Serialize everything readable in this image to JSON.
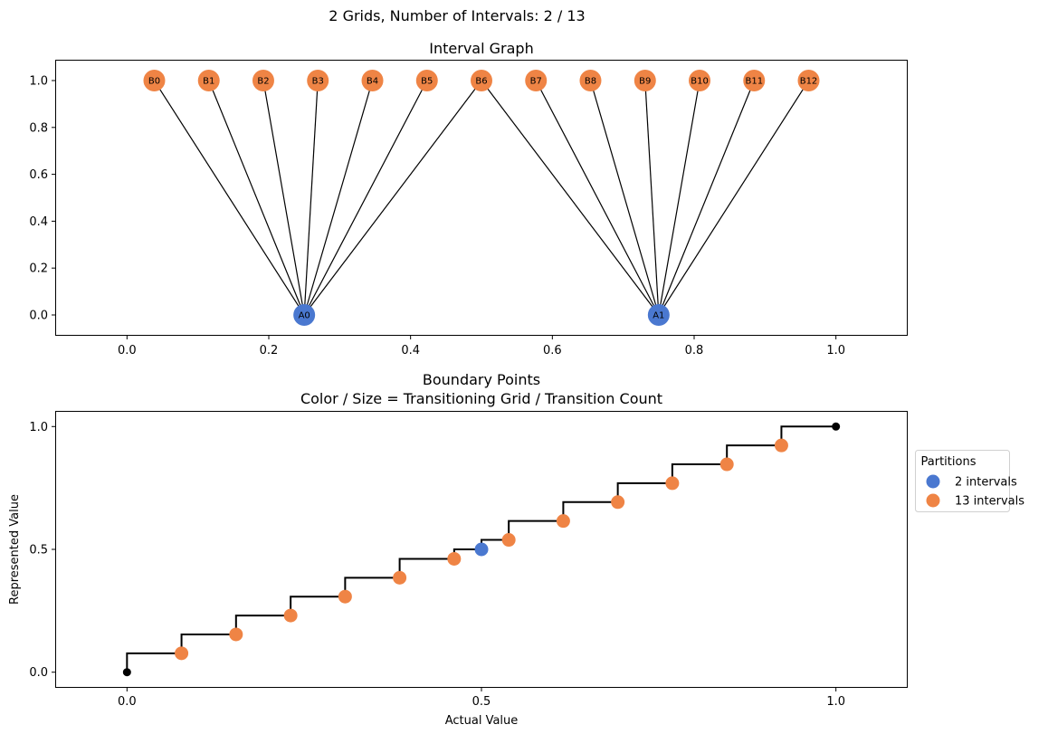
{
  "suptitle": "2 Grids, Number of Intervals: 2 / 13",
  "colors": {
    "blue": "#4a78d0",
    "orange": "#ef8445",
    "black": "#000000"
  },
  "chart_data": [
    {
      "type": "graph",
      "title": "Interval Graph",
      "xlabel": "",
      "ylabel": "",
      "xlim": [
        -0.1,
        1.1
      ],
      "ylim": [
        -0.085,
        1.085
      ],
      "xticks": [
        "0.0",
        "0.2",
        "0.4",
        "0.6",
        "0.8",
        "1.0"
      ],
      "yticks": [
        "0.0",
        "0.2",
        "0.4",
        "0.6",
        "0.8",
        "1.0"
      ],
      "grid": false,
      "nodes": [
        {
          "id": "A0",
          "x": 0.25,
          "y": 0,
          "group": "blue"
        },
        {
          "id": "A1",
          "x": 0.75,
          "y": 0,
          "group": "blue"
        },
        {
          "id": "B0",
          "x": 0.0385,
          "y": 1,
          "group": "orange"
        },
        {
          "id": "B1",
          "x": 0.1154,
          "y": 1,
          "group": "orange"
        },
        {
          "id": "B2",
          "x": 0.1923,
          "y": 1,
          "group": "orange"
        },
        {
          "id": "B3",
          "x": 0.2692,
          "y": 1,
          "group": "orange"
        },
        {
          "id": "B4",
          "x": 0.3462,
          "y": 1,
          "group": "orange"
        },
        {
          "id": "B5",
          "x": 0.4231,
          "y": 1,
          "group": "orange"
        },
        {
          "id": "B6",
          "x": 0.5,
          "y": 1,
          "group": "orange"
        },
        {
          "id": "B7",
          "x": 0.5769,
          "y": 1,
          "group": "orange"
        },
        {
          "id": "B8",
          "x": 0.6538,
          "y": 1,
          "group": "orange"
        },
        {
          "id": "B9",
          "x": 0.7308,
          "y": 1,
          "group": "orange"
        },
        {
          "id": "B10",
          "x": 0.8077,
          "y": 1,
          "group": "orange"
        },
        {
          "id": "B11",
          "x": 0.8846,
          "y": 1,
          "group": "orange"
        },
        {
          "id": "B12",
          "x": 0.9615,
          "y": 1,
          "group": "orange"
        }
      ],
      "edges": [
        [
          "A0",
          "B0"
        ],
        [
          "A0",
          "B1"
        ],
        [
          "A0",
          "B2"
        ],
        [
          "A0",
          "B3"
        ],
        [
          "A0",
          "B4"
        ],
        [
          "A0",
          "B5"
        ],
        [
          "A0",
          "B6"
        ],
        [
          "A1",
          "B6"
        ],
        [
          "A1",
          "B7"
        ],
        [
          "A1",
          "B8"
        ],
        [
          "A1",
          "B9"
        ],
        [
          "A1",
          "B10"
        ],
        [
          "A1",
          "B11"
        ],
        [
          "A1",
          "B12"
        ]
      ]
    },
    {
      "type": "step-scatter",
      "title": "Boundary Points",
      "subtitle": "Color / Size = Transitioning Grid / Transition Count",
      "xlabel": "Actual Value",
      "ylabel": "Represented Value",
      "xlim": [
        -0.1,
        1.1
      ],
      "ylim": [
        -0.06,
        1.06
      ],
      "xticks": [
        "0.0",
        "0.5",
        "1.0"
      ],
      "yticks": [
        "0.0",
        "0.5",
        "1.0"
      ],
      "grid": false,
      "step": {
        "x": [
          0,
          0.0769,
          0.1538,
          0.2308,
          0.3077,
          0.3846,
          0.4615,
          0.5,
          0.5385,
          0.6154,
          0.6923,
          0.7692,
          0.8462,
          0.9231,
          1.0
        ],
        "y": [
          0,
          0.0769,
          0.1538,
          0.2308,
          0.3077,
          0.3846,
          0.4615,
          0.5,
          0.5385,
          0.6154,
          0.6923,
          0.7692,
          0.8462,
          0.9231,
          1.0
        ]
      },
      "endpoints": [
        {
          "x": 0,
          "y": 0
        },
        {
          "x": 1,
          "y": 1
        }
      ],
      "series": [
        {
          "name": "2 intervals",
          "color": "#4a78d0",
          "points": [
            {
              "x": 0.5,
              "y": 0.5
            }
          ]
        },
        {
          "name": "13 intervals",
          "color": "#ef8445",
          "points": [
            {
              "x": 0.0769,
              "y": 0.0769
            },
            {
              "x": 0.1538,
              "y": 0.1538
            },
            {
              "x": 0.2308,
              "y": 0.2308
            },
            {
              "x": 0.3077,
              "y": 0.3077
            },
            {
              "x": 0.3846,
              "y": 0.3846
            },
            {
              "x": 0.4615,
              "y": 0.4615
            },
            {
              "x": 0.5385,
              "y": 0.5385
            },
            {
              "x": 0.6154,
              "y": 0.6154
            },
            {
              "x": 0.6923,
              "y": 0.6923
            },
            {
              "x": 0.7692,
              "y": 0.7692
            },
            {
              "x": 0.8462,
              "y": 0.8462
            },
            {
              "x": 0.9231,
              "y": 0.9231
            }
          ]
        }
      ],
      "legend": {
        "title": "Partitions",
        "placement": "outside-right"
      }
    }
  ]
}
